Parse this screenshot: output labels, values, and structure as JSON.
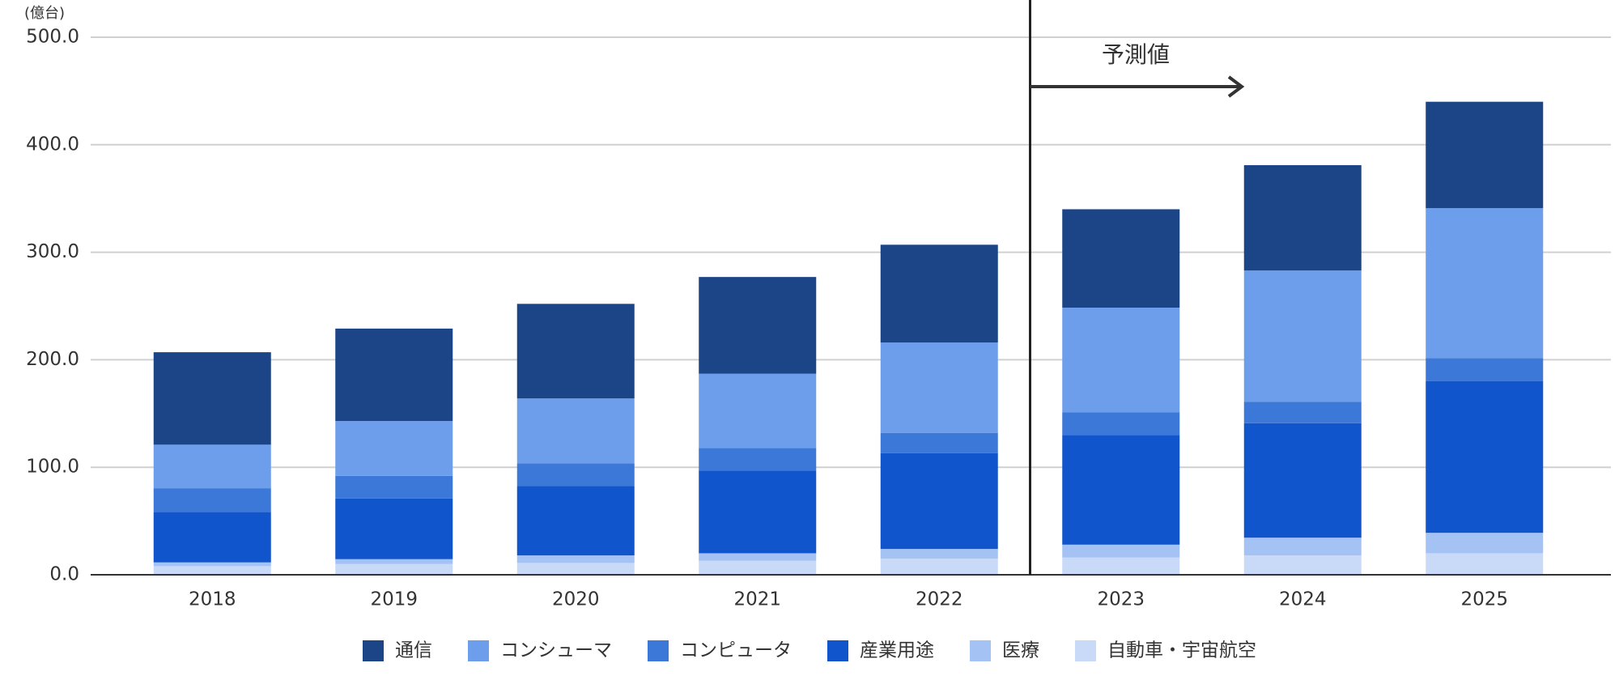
{
  "chart_data": {
    "type": "stacked_bar",
    "unit_label": "(億台)",
    "annotation": "予測値",
    "categories": [
      "2018",
      "2019",
      "2020",
      "2021",
      "2022",
      "2023",
      "2024",
      "2025"
    ],
    "series": [
      {
        "name": "通信",
        "color": "#1c4587",
        "values": [
          86,
          86,
          88,
          90,
          91,
          91.5,
          98,
          99
        ]
      },
      {
        "name": "コンシューマ",
        "color": "#6d9eeb",
        "values": [
          40.5,
          51,
          60.5,
          69,
          84,
          97.5,
          122,
          139.5
        ]
      },
      {
        "name": "コンピュータ",
        "color": "#3c78d8",
        "values": [
          22,
          21,
          21,
          21,
          19,
          21,
          20,
          21.5
        ]
      },
      {
        "name": "産業用途",
        "color": "#1155cc",
        "values": [
          47,
          56.5,
          64.5,
          77,
          89,
          102,
          106.5,
          141
        ]
      },
      {
        "name": "医療",
        "color": "#a4c2f4",
        "values": [
          3.5,
          4.5,
          7,
          7,
          9,
          12,
          16.5,
          19
        ]
      },
      {
        "name": "自動車・宇宙航空",
        "color": "#c9daf8",
        "values": [
          8,
          10,
          11,
          13,
          15,
          16,
          18,
          20
        ]
      }
    ],
    "ylim": [
      0,
      500
    ],
    "yticks": [
      {
        "value": 0,
        "label": "0.0"
      },
      {
        "value": 100,
        "label": "100.0"
      },
      {
        "value": 200,
        "label": "200.0"
      },
      {
        "value": 300,
        "label": "300.0"
      },
      {
        "value": 400,
        "label": "400.0"
      },
      {
        "value": 500,
        "label": "500.0"
      }
    ],
    "grid": true,
    "legend": "bottom"
  }
}
